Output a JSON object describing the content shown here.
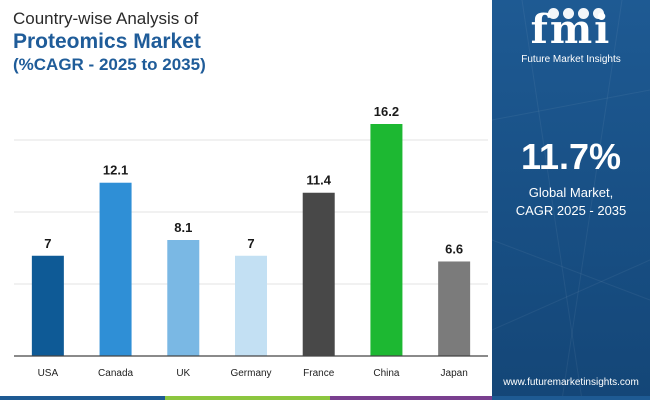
{
  "title": {
    "line1": "Country-wise Analysis of",
    "line2": "Proteomics Market",
    "line3": "(%CAGR - 2025 to 2035)"
  },
  "chart_data": {
    "type": "bar",
    "categories": [
      "USA",
      "Canada",
      "UK",
      "Germany",
      "France",
      "China",
      "Japan"
    ],
    "values": [
      7,
      12.1,
      8.1,
      7,
      11.4,
      16.2,
      6.6
    ],
    "value_labels": [
      "7",
      "12.1",
      "8.1",
      "7",
      "11.4",
      "16.2",
      "6.6"
    ],
    "colors": [
      "#0e5a96",
      "#2f8fd6",
      "#7ab8e4",
      "#c3e0f3",
      "#484848",
      "#1db832",
      "#7b7b7b"
    ],
    "ylim": [
      0,
      16.2
    ],
    "grid": true,
    "legend": "none"
  },
  "panel": {
    "logo_mark": "fmi",
    "logo_text": "Future Market Insights",
    "cagr_value": "11.7%",
    "cagr_label_line1": "Global Market,",
    "cagr_label_line2": "CAGR 2025 - 2035",
    "website": "www.futuremarketinsights.com",
    "background": "#1a5288"
  },
  "footer_colors": [
    "#1e5a93",
    "#8cc63f",
    "#7a3f8f",
    "#1e5a93"
  ]
}
